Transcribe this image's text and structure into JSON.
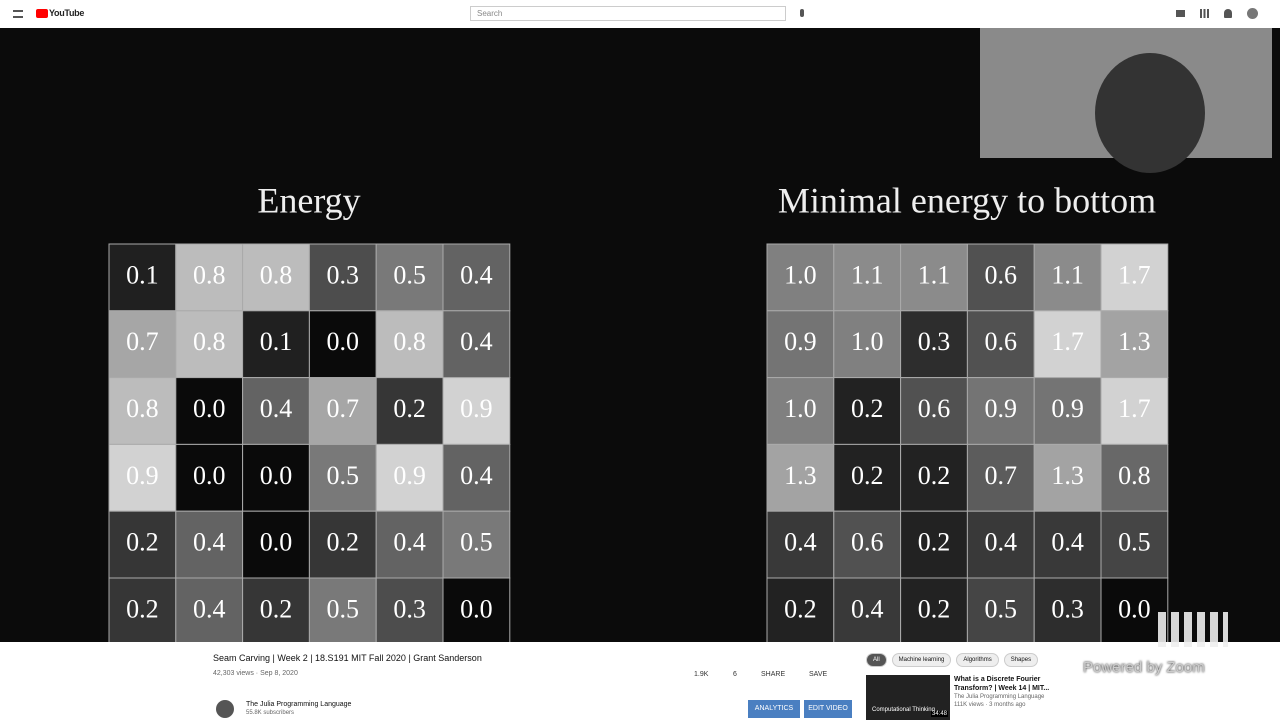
{
  "header": {
    "logo": "YouTube",
    "search_placeholder": "Search"
  },
  "video": {
    "panels": [
      {
        "title": "Energy",
        "grid": [
          [
            "0.1",
            "0.8",
            "0.8",
            "0.3",
            "0.5",
            "0.4"
          ],
          [
            "0.7",
            "0.8",
            "0.1",
            "0.0",
            "0.8",
            "0.4"
          ],
          [
            "0.8",
            "0.0",
            "0.4",
            "0.7",
            "0.2",
            "0.9"
          ],
          [
            "0.9",
            "0.0",
            "0.0",
            "0.5",
            "0.9",
            "0.4"
          ],
          [
            "0.2",
            "0.4",
            "0.0",
            "0.2",
            "0.4",
            "0.5"
          ],
          [
            "0.2",
            "0.4",
            "0.2",
            "0.5",
            "0.3",
            "0.0"
          ]
        ]
      },
      {
        "title": "Minimal energy to bottom",
        "grid": [
          [
            "1.0",
            "1.1",
            "1.1",
            "0.6",
            "1.1",
            "1.7"
          ],
          [
            "0.9",
            "1.0",
            "0.3",
            "0.6",
            "1.7",
            "1.3"
          ],
          [
            "1.0",
            "0.2",
            "0.6",
            "0.9",
            "0.9",
            "1.7"
          ],
          [
            "1.3",
            "0.2",
            "0.2",
            "0.7",
            "1.3",
            "0.8"
          ],
          [
            "0.4",
            "0.6",
            "0.2",
            "0.4",
            "0.4",
            "0.5"
          ],
          [
            "0.2",
            "0.4",
            "0.2",
            "0.5",
            "0.3",
            "0.0"
          ]
        ]
      }
    ],
    "watermark": "Powered by Zoom"
  },
  "info": {
    "title": "Seam Carving | Week 2 | 18.S191 MIT Fall 2020 | Grant Sanderson",
    "meta": "42,303 views · Sep 8, 2020",
    "likes": "1.9K",
    "dislikes": "6",
    "share": "SHARE",
    "save": "SAVE",
    "channel": "The Julia Programming Language",
    "subscribers": "55.8K subscribers",
    "analytics": "ANALYTICS",
    "edit": "EDIT VIDEO"
  },
  "chips": [
    "All",
    "Machine learning",
    "Algorithms",
    "Shapes"
  ],
  "recommendation": {
    "title": "What is a Discrete Fourier Transform? | Week 14 | MIT...",
    "channel": "The Julia Programming Language",
    "meta": "111K views · 3 months ago",
    "duration": "34:48",
    "thumb_text": "Computational Thinking"
  }
}
